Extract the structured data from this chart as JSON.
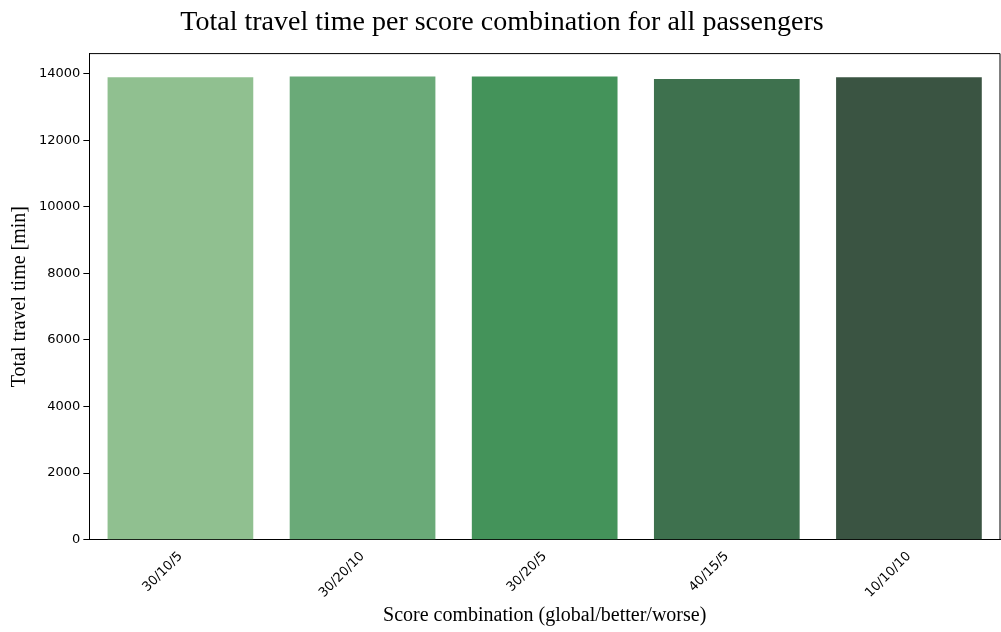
{
  "chart_data": {
    "type": "bar",
    "title": "Total travel time per score combination for all passengers",
    "xlabel": "Score combination (global/better/worse)",
    "ylabel": "Total travel time [min]",
    "categories": [
      "30/10/5",
      "30/20/10",
      "30/20/5",
      "40/15/5",
      "10/10/10"
    ],
    "values": [
      13890,
      13910,
      13910,
      13840,
      13890
    ],
    "colors": [
      "#90c090",
      "#6aaa78",
      "#44935a",
      "#3e714e",
      "#3a5442"
    ],
    "ylim": [
      0,
      14600
    ],
    "yticks": [
      0,
      2000,
      4000,
      6000,
      8000,
      10000,
      12000,
      14000
    ],
    "grid": false,
    "legend": false
  }
}
